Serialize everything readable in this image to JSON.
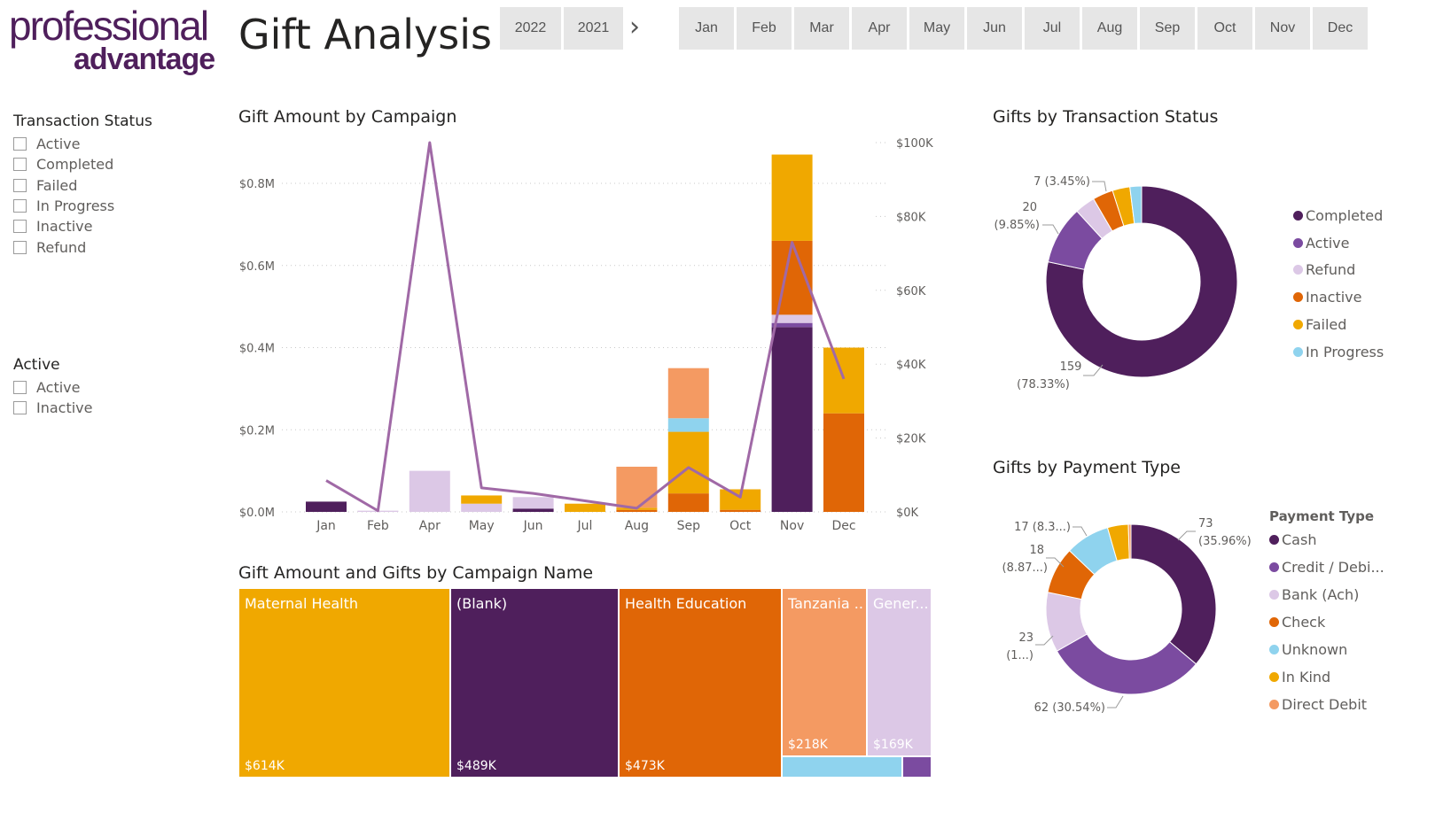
{
  "logo": {
    "line1": "professional",
    "line2": "advantage"
  },
  "page_title": "Gift Analysis",
  "years": [
    "2022",
    "2021"
  ],
  "months": [
    "Jan",
    "Feb",
    "Mar",
    "Apr",
    "May",
    "Jun",
    "Jul",
    "Aug",
    "Sep",
    "Oct",
    "Nov",
    "Dec"
  ],
  "slicers": {
    "transaction_status": {
      "title": "Transaction Status",
      "items": [
        "Active",
        "Completed",
        "Failed",
        "In Progress",
        "Inactive",
        "Refund"
      ]
    },
    "active": {
      "title": "Active",
      "items": [
        "Active",
        "Inactive"
      ]
    }
  },
  "colors": {
    "dark_purple": "#4f1f5c",
    "purple": "#7b4ba0",
    "lavender": "#dcc8e6",
    "orange": "#e06606",
    "gold": "#f0a800",
    "light_blue": "#8fd3ee",
    "salmon": "#f49a62",
    "line": "#a069a6",
    "grid": "#c8c8c8"
  },
  "visuals": {
    "campaign_chart_title": "Gift Amount by Campaign",
    "status_title": "Gifts by Transaction Status",
    "payment_title": "Gifts by Payment Type",
    "treemap_title": "Gift Amount and Gifts by Campaign Name",
    "payment_legend_title": "Payment Type"
  },
  "chart_data": [
    {
      "type": "bar",
      "title": "Gift Amount by Campaign",
      "categories": [
        "Jan",
        "Feb",
        "Apr",
        "May",
        "Jun",
        "Jul",
        "Aug",
        "Sep",
        "Oct",
        "Nov",
        "Dec"
      ],
      "left_axis": {
        "ticks": [
          "$0.0M",
          "$0.2M",
          "$0.4M",
          "$0.6M",
          "$0.8M"
        ],
        "ylim": [
          0,
          0.9
        ]
      },
      "right_axis": {
        "ticks": [
          "$0K",
          "$20K",
          "$40K",
          "$60K",
          "$80K",
          "$100K"
        ],
        "ylim": [
          0,
          100
        ]
      },
      "stacks": [
        [
          {
            "v": 0.025,
            "c": "dark_purple"
          }
        ],
        [
          {
            "v": 0.003,
            "c": "lavender"
          }
        ],
        [
          {
            "v": 0.1,
            "c": "lavender"
          }
        ],
        [
          {
            "v": 0.02,
            "c": "lavender"
          },
          {
            "v": 0.02,
            "c": "gold"
          }
        ],
        [
          {
            "v": 0.008,
            "c": "dark_purple"
          },
          {
            "v": 0.028,
            "c": "lavender"
          }
        ],
        [
          {
            "v": 0.02,
            "c": "gold"
          }
        ],
        [
          {
            "v": 0.005,
            "c": "orange"
          },
          {
            "v": 0.005,
            "c": "gold"
          },
          {
            "v": 0.1,
            "c": "salmon"
          }
        ],
        [
          {
            "v": 0.045,
            "c": "orange"
          },
          {
            "v": 0.15,
            "c": "gold"
          },
          {
            "v": 0.033,
            "c": "light_blue"
          },
          {
            "v": 0.122,
            "c": "salmon"
          }
        ],
        [
          {
            "v": 0.005,
            "c": "orange"
          },
          {
            "v": 0.05,
            "c": "gold"
          }
        ],
        [
          {
            "v": 0.45,
            "c": "dark_purple"
          },
          {
            "v": 0.01,
            "c": "purple"
          },
          {
            "v": 0.02,
            "c": "lavender"
          },
          {
            "v": 0.18,
            "c": "orange"
          },
          {
            "v": 0.21,
            "c": "gold"
          }
        ],
        [
          {
            "v": 0.24,
            "c": "orange"
          },
          {
            "v": 0.16,
            "c": "gold"
          }
        ]
      ],
      "line_series": {
        "values": [
          8.5,
          0.3,
          100,
          6.5,
          5,
          3,
          1,
          12,
          4,
          73,
          36
        ]
      }
    },
    {
      "type": "pie",
      "title": "Gifts by Transaction Status",
      "slices": [
        {
          "label": "Completed",
          "value": 159,
          "pct": "78.33%",
          "color": "dark_purple"
        },
        {
          "label": "Active",
          "value": 20,
          "pct": "9.85%",
          "color": "purple"
        },
        {
          "label": "Refund",
          "value": 7,
          "pct": "3.45%",
          "color": "lavender"
        },
        {
          "label": "Inactive",
          "value": 7,
          "pct": "",
          "color": "orange"
        },
        {
          "label": "Failed",
          "value": 6,
          "pct": "",
          "color": "gold"
        },
        {
          "label": "In Progress",
          "value": 4,
          "pct": "",
          "color": "light_blue"
        }
      ],
      "annotations": [
        {
          "l1": "7 (3.45%)",
          "l2": ""
        },
        {
          "l1": "20",
          "l2": "(9.85%)"
        },
        {
          "l1": "159",
          "l2": "(78.33%)"
        }
      ]
    },
    {
      "type": "pie",
      "title": "Gifts by Payment Type",
      "slices": [
        {
          "label": "Cash",
          "value": 73,
          "pct": "35.96%",
          "color": "dark_purple"
        },
        {
          "label": "Credit / Debi...",
          "value": 62,
          "pct": "30.54%",
          "color": "purple"
        },
        {
          "label": "Bank (Ach)",
          "value": 23,
          "pct": "",
          "color": "lavender"
        },
        {
          "label": "Check",
          "value": 18,
          "pct": "8.87...",
          "color": "orange"
        },
        {
          "label": "Unknown",
          "value": 17,
          "pct": "8.3...",
          "color": "light_blue"
        },
        {
          "label": "In Kind",
          "value": 8,
          "pct": "",
          "color": "gold"
        },
        {
          "label": "Direct Debit",
          "value": 1,
          "pct": "",
          "color": "salmon"
        }
      ],
      "annotations": [
        {
          "l1": "73",
          "l2": "(35.96%)"
        },
        {
          "l1": "17 (8.3...)",
          "l2": ""
        },
        {
          "l1": "18",
          "l2": "(8.87...)"
        },
        {
          "l1": "23",
          "l2": "(1...)"
        },
        {
          "l1": "62 (30.54%)",
          "l2": ""
        }
      ]
    },
    {
      "type": "treemap",
      "title": "Gift Amount and Gifts by Campaign Name",
      "items": [
        {
          "name": "Maternal Health",
          "value": "$614K",
          "color": "gold"
        },
        {
          "name": "(Blank)",
          "value": "$489K",
          "color": "dark_purple"
        },
        {
          "name": "Health Education",
          "value": "$473K",
          "color": "orange"
        },
        {
          "name": "Tanzania ...",
          "value": "$218K",
          "color": "salmon"
        },
        {
          "name": "Gener...",
          "value": "$169K",
          "color": "lavender"
        },
        {
          "name": "",
          "value": "",
          "color": "light_blue"
        },
        {
          "name": "",
          "value": "",
          "color": "purple"
        }
      ]
    }
  ]
}
